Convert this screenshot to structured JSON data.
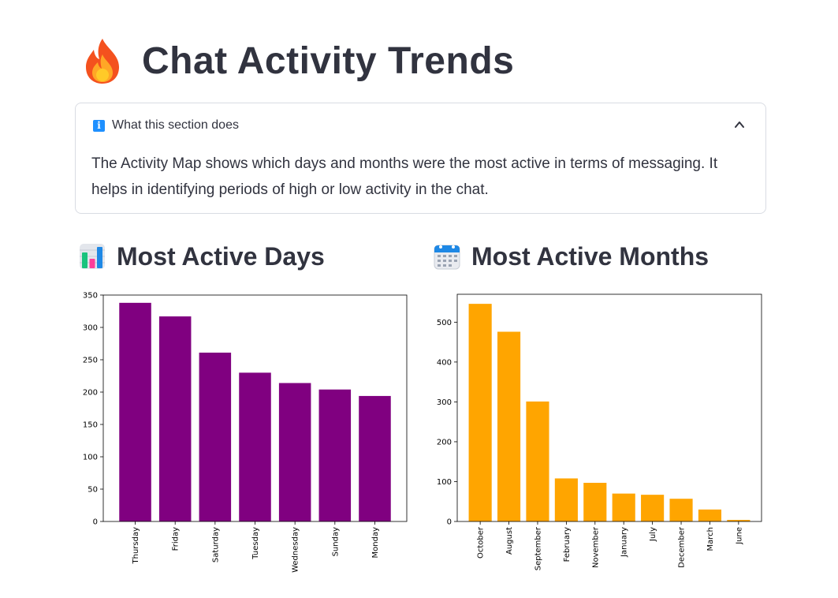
{
  "page": {
    "title": "Chat Activity Trends",
    "title_icon": "fire-icon"
  },
  "expander": {
    "label": "What this section does",
    "icon": "info-icon",
    "expanded": true,
    "body": "The Activity Map shows which days and months were the most active in terms of messaging. It helps in identifying periods of high or low activity in the chat."
  },
  "sections": {
    "days": {
      "title": "Most Active Days",
      "icon": "bar-chart-icon"
    },
    "months": {
      "title": "Most Active Months",
      "icon": "calendar-icon"
    }
  },
  "chart_data": [
    {
      "type": "bar",
      "categories": [
        "Thursday",
        "Friday",
        "Saturday",
        "Tuesday",
        "Wednesday",
        "Sunday",
        "Monday"
      ],
      "values": [
        338,
        317,
        261,
        230,
        214,
        204,
        194
      ],
      "ylim": [
        0,
        350
      ],
      "yticks": [
        0,
        50,
        100,
        150,
        200,
        250,
        300,
        350
      ],
      "color": "#800080",
      "grid": false
    },
    {
      "type": "bar",
      "categories": [
        "October",
        "August",
        "September",
        "February",
        "November",
        "January",
        "July",
        "December",
        "March",
        "June"
      ],
      "values": [
        546,
        476,
        301,
        108,
        97,
        70,
        67,
        57,
        30,
        4
      ],
      "ylim": [
        0,
        570
      ],
      "yticks": [
        0,
        100,
        200,
        300,
        400,
        500
      ],
      "color": "#ffa500",
      "grid": false
    }
  ]
}
